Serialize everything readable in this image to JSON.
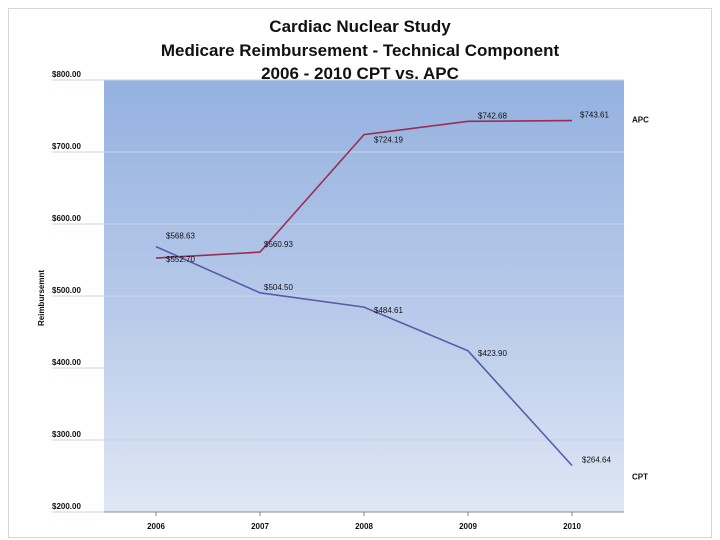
{
  "chart_data": {
    "type": "line",
    "title_lines": [
      "Cardiac Nuclear Study",
      "Medicare Reimbursement - Technical Component",
      "2006 - 2010 CPT vs. APC"
    ],
    "xlabel": "",
    "ylabel": "Reimbursemnt",
    "categories": [
      "2006",
      "2007",
      "2008",
      "2009",
      "2010"
    ],
    "ylim": [
      200,
      800
    ],
    "yticks": [
      "$800.00",
      "$700.00",
      "$600.00",
      "$500.00",
      "$400.00",
      "$300.00",
      "$200.00"
    ],
    "ytick_values": [
      800,
      700,
      600,
      500,
      400,
      300,
      200
    ],
    "grid": true,
    "legend": "none (series labeled at line ends)",
    "series": [
      {
        "name": "APC",
        "color": "#9b2c54",
        "values": [
          552.7,
          560.93,
          724.19,
          742.68,
          743.61
        ],
        "labels": [
          "$552.70",
          "$560.93",
          "$724.19",
          "$742.68",
          "$743.61"
        ]
      },
      {
        "name": "CPT",
        "color": "#5b5aa8",
        "values": [
          568.63,
          504.5,
          484.61,
          423.9,
          264.64
        ],
        "labels": [
          "$568.63",
          "$504.50",
          "$484.61",
          "$423.90",
          "$264.64"
        ]
      }
    ]
  }
}
